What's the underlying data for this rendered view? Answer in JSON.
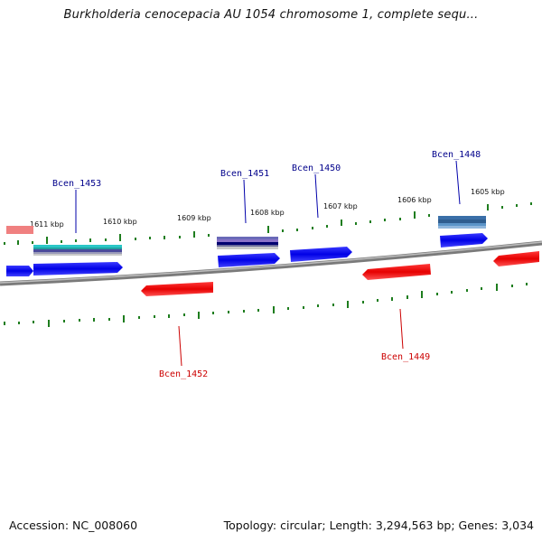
{
  "title": "Burkholderia cenocepacia AU 1054 chromosome 1, complete sequ...",
  "footer": {
    "accession": "Accession: NC_008060",
    "topology": "Topology: circular; Length: 3,294,563 bp; Genes: 3,034"
  },
  "kbp_labels": [
    "1611 kbp",
    "1610 kbp",
    "1609 kbp",
    "1608 kbp",
    "1607 kbp",
    "1606 kbp",
    "1605 kbp"
  ],
  "genes": [
    {
      "name": "Bcen_1453",
      "strand": "forward",
      "color": "#00008b"
    },
    {
      "name": "Bcen_1451",
      "strand": "forward",
      "color": "#00008b"
    },
    {
      "name": "Bcen_1450",
      "strand": "forward",
      "color": "#00008b"
    },
    {
      "name": "Bcen_1448",
      "strand": "forward",
      "color": "#00008b"
    },
    {
      "name": "Bcen_1452",
      "strand": "reverse",
      "color": "#cc0000"
    },
    {
      "name": "Bcen_1449",
      "strand": "reverse",
      "color": "#cc0000"
    }
  ],
  "colors": {
    "forward_gene": "#0000ee",
    "reverse_gene": "#ee0000",
    "ticks": "#1e7d1e",
    "backbone": "#808080"
  }
}
